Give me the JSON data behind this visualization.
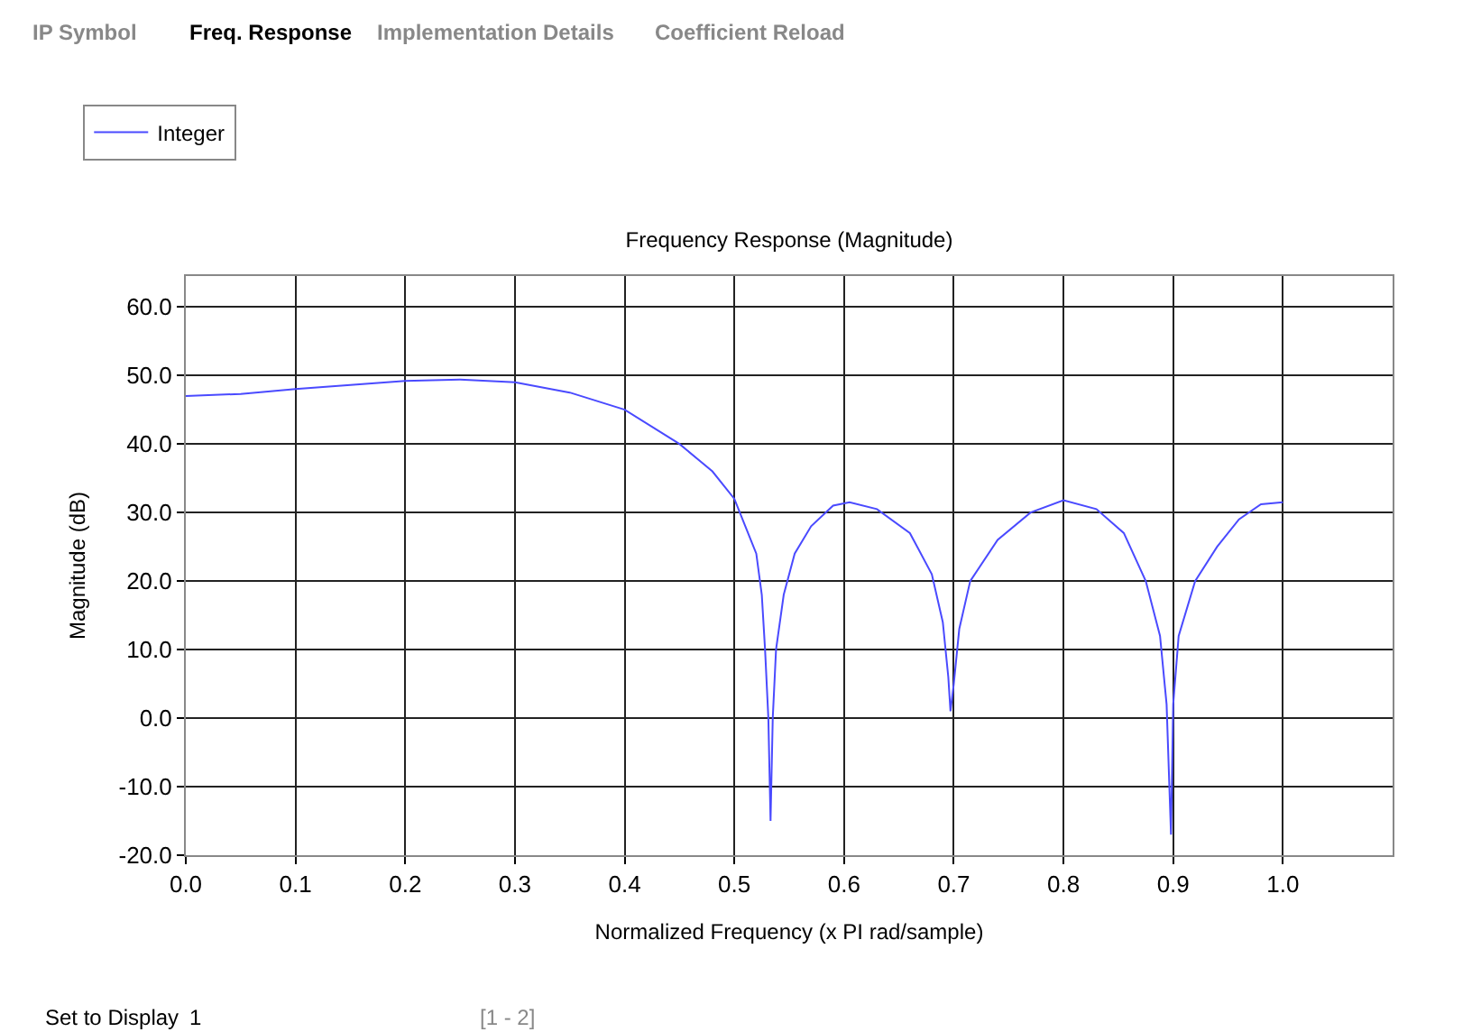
{
  "chart_data": {
    "type": "line",
    "title": "Frequency Response (Magnitude)",
    "xlabel": "Normalized Frequency (x PI rad/sample)",
    "ylabel": "Magnitude (dB)",
    "annotations": [
      "IP Symbol",
      "Freq. Response",
      "Implementation Details",
      "Coefficient Reload",
      "Set to Display",
      "1",
      "[1 - 2]"
    ],
    "series": [
      {
        "name": "Integer",
        "color": "#4a4aff",
        "x": [
          0,
          0.05,
          0.1,
          0.15,
          0.2,
          0.25,
          0.3,
          0.35,
          0.4,
          0.45,
          0.48,
          0.5,
          0.51,
          0.52,
          0.525,
          0.528,
          0.531,
          0.533,
          0.535,
          0.538,
          0.545,
          0.555,
          0.57,
          0.59,
          0.605,
          0.63,
          0.66,
          0.68,
          0.69,
          0.695,
          0.697,
          0.7,
          0.705,
          0.715,
          0.74,
          0.77,
          0.8,
          0.83,
          0.855,
          0.875,
          0.888,
          0.894,
          0.898,
          0.9,
          0.905,
          0.92,
          0.94,
          0.96,
          0.98,
          1.0
        ],
        "values": [
          47,
          47.3,
          48,
          48.6,
          49.2,
          49.4,
          49,
          47.5,
          45,
          40,
          36,
          32,
          28,
          24,
          18,
          10,
          0,
          -15,
          0,
          10,
          18,
          24,
          28,
          31,
          31.5,
          30.5,
          27,
          21,
          14,
          6,
          1,
          5,
          13,
          20,
          26,
          30,
          31.8,
          30.5,
          27,
          20,
          12,
          2,
          -17,
          2,
          12,
          20,
          25,
          29,
          31.2,
          31.5
        ]
      }
    ],
    "xlim": [
      0,
      1.1
    ],
    "xticks": [
      {
        "value": 0,
        "label": "0.0"
      },
      0.1,
      0.2,
      0.3,
      0.4,
      0.5,
      0.6,
      0.7,
      0.8,
      0.9,
      {
        "value": 1,
        "label": "1.0"
      }
    ],
    "ylim": [
      -20,
      64.5
    ],
    "yticks": [
      {
        "value": -20,
        "label": "-20.0"
      },
      {
        "value": -10,
        "label": "-10.0"
      },
      {
        "value": 0,
        "label": "0.0"
      },
      {
        "value": 10,
        "label": "10.0"
      },
      {
        "value": 20,
        "label": "20.0"
      },
      {
        "value": 30,
        "label": "30.0"
      },
      {
        "value": 40,
        "label": "40.0"
      },
      {
        "value": 50,
        "label": "50.0"
      },
      {
        "value": 60,
        "label": "60.0"
      }
    ],
    "grid": true,
    "legend": "top left",
    "marker": "none",
    "line_style": "solid"
  }
}
